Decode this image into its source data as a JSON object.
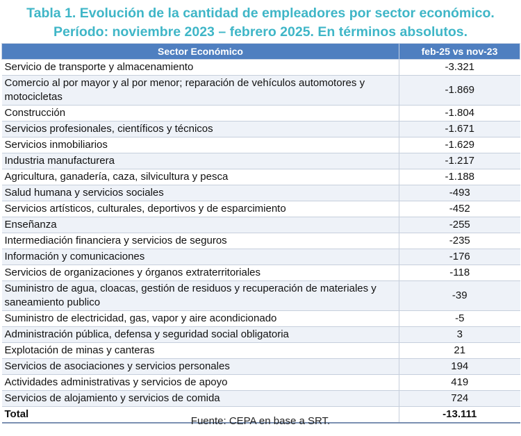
{
  "title_line1": "Tabla 1. Evolución de la cantidad de empleadores por sector económico.",
  "title_line2": "Período: noviembre 2023 – febrero 2025. En términos absolutos.",
  "table": {
    "headers": [
      "Sector Económico",
      "feb-25 vs nov-23"
    ],
    "rows": [
      {
        "sector": "Servicio de transporte y almacenamiento",
        "value": "-3.321"
      },
      {
        "sector": "Comercio al por mayor y al por menor; reparación de vehículos automotores y motocicletas",
        "value": "-1.869"
      },
      {
        "sector": "Construcción",
        "value": "-1.804"
      },
      {
        "sector": "Servicios profesionales, científicos y técnicos",
        "value": "-1.671"
      },
      {
        "sector": "Servicios inmobiliarios",
        "value": "-1.629"
      },
      {
        "sector": "Industria manufacturera",
        "value": "-1.217"
      },
      {
        "sector": "Agricultura, ganadería, caza, silvicultura y pesca",
        "value": "-1.188"
      },
      {
        "sector": "Salud humana y servicios sociales",
        "value": "-493"
      },
      {
        "sector": "Servicios artísticos, culturales, deportivos y de esparcimiento",
        "value": "-452"
      },
      {
        "sector": "Enseñanza",
        "value": "-255"
      },
      {
        "sector": "Intermediación financiera y servicios de seguros",
        "value": "-235"
      },
      {
        "sector": "Información y comunicaciones",
        "value": "-176"
      },
      {
        "sector": "Servicios de organizaciones y órganos extraterritoriales",
        "value": "-118"
      },
      {
        "sector": "Suministro de agua, cloacas, gestión de residuos y recuperación de materiales y saneamiento publico",
        "value": "-39"
      },
      {
        "sector": "Suministro de electricidad, gas, vapor y aire acondicionado",
        "value": "-5"
      },
      {
        "sector": "Administración pública, defensa y seguridad social obligatoria",
        "value": "3"
      },
      {
        "sector": "Explotación de minas y canteras",
        "value": "21"
      },
      {
        "sector": "Servicios de asociaciones y servicios personales",
        "value": "194"
      },
      {
        "sector": "Actividades administrativas y servicios de apoyo",
        "value": "419"
      },
      {
        "sector": "Servicios de alojamiento y servicios de comida",
        "value": "724"
      }
    ],
    "total": {
      "label": "Total",
      "value": "-13.111"
    }
  },
  "source": "Fuente: CEPA en base a SRT.",
  "colors": {
    "title": "#3fb6c7",
    "header_bg": "#4f7fc0",
    "stripe": "#eef2f8"
  }
}
